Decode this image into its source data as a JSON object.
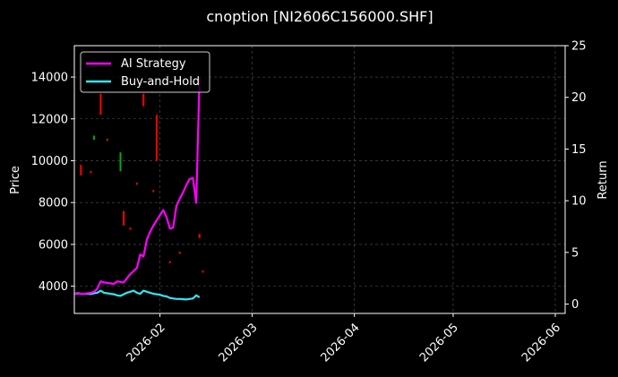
{
  "chart_data": {
    "type": "line",
    "title": "cnoption [NI2606C156000.SHF]",
    "ylabel": "Price",
    "ylabel_right": "Return",
    "x_range": [
      "2026-01-06",
      "2026-06-04"
    ],
    "ylim": [
      2700,
      15500
    ],
    "ylim_right": [
      -0.9,
      25
    ],
    "x_ticks": [
      "2026-02",
      "2026-03",
      "2026-04",
      "2026-05",
      "2026-06"
    ],
    "y_ticks": [
      4000,
      6000,
      8000,
      10000,
      12000,
      14000
    ],
    "y_ticks_right": [
      0,
      5,
      10,
      15,
      20,
      25
    ],
    "grid": true,
    "legend_position": "top-left",
    "colors": {
      "background": "#000000",
      "strategy": "#ff00ff",
      "buyhold": "#33e5f2",
      "candle_up": "#00b000",
      "candle_down": "#ff0000",
      "grid": "#555555"
    },
    "series": [
      {
        "name": "AI Strategy",
        "color": "#ff00ff",
        "axis": "right",
        "x": [
          "2026-01-06",
          "2026-01-07",
          "2026-01-08",
          "2026-01-09",
          "2026-01-10",
          "2026-01-11",
          "2026-01-12",
          "2026-01-13",
          "2026-01-14",
          "2026-01-15",
          "2026-01-16",
          "2026-01-17",
          "2026-01-18",
          "2026-01-19",
          "2026-01-20",
          "2026-01-21",
          "2026-01-22",
          "2026-01-23",
          "2026-01-24",
          "2026-01-25",
          "2026-01-26",
          "2026-01-27",
          "2026-01-28",
          "2026-01-29",
          "2026-01-30",
          "2026-01-31",
          "2026-02-01",
          "2026-02-02",
          "2026-02-03",
          "2026-02-04",
          "2026-02-05",
          "2026-02-06",
          "2026-02-07",
          "2026-02-08",
          "2026-02-09",
          "2026-02-10",
          "2026-02-11",
          "2026-02-12",
          "2026-02-13"
        ],
        "values": [
          1.0,
          1.0,
          1.0,
          1.0,
          1.05,
          1.1,
          1.2,
          1.5,
          2.2,
          2.1,
          2.05,
          2.0,
          1.95,
          2.2,
          2.15,
          2.1,
          2.5,
          2.9,
          3.2,
          3.5,
          4.8,
          4.6,
          6.2,
          7.0,
          7.6,
          8.1,
          8.6,
          9.1,
          8.4,
          7.3,
          7.4,
          9.5,
          10.2,
          10.8,
          11.5,
          12.1,
          12.2,
          9.8,
          22.0
        ]
      },
      {
        "name": "Buy-and-Hold",
        "color": "#33e5f2",
        "axis": "right",
        "x": [
          "2026-01-06",
          "2026-01-07",
          "2026-01-08",
          "2026-01-09",
          "2026-01-10",
          "2026-01-11",
          "2026-01-12",
          "2026-01-13",
          "2026-01-14",
          "2026-01-15",
          "2026-01-16",
          "2026-01-17",
          "2026-01-18",
          "2026-01-19",
          "2026-01-20",
          "2026-01-21",
          "2026-01-22",
          "2026-01-23",
          "2026-01-24",
          "2026-01-25",
          "2026-01-26",
          "2026-01-27",
          "2026-01-28",
          "2026-01-29",
          "2026-01-30",
          "2026-01-31",
          "2026-02-01",
          "2026-02-02",
          "2026-02-03",
          "2026-02-04",
          "2026-02-05",
          "2026-02-06",
          "2026-02-07",
          "2026-02-08",
          "2026-02-09",
          "2026-02-10",
          "2026-02-11",
          "2026-02-12",
          "2026-02-13"
        ],
        "values": [
          1.0,
          1.05,
          1.0,
          1.0,
          1.0,
          0.98,
          1.05,
          1.1,
          1.3,
          1.1,
          1.05,
          1.0,
          0.95,
          0.85,
          0.8,
          0.95,
          1.1,
          1.2,
          1.3,
          1.1,
          1.0,
          1.3,
          1.2,
          1.1,
          1.0,
          0.95,
          0.9,
          0.8,
          0.75,
          0.6,
          0.55,
          0.5,
          0.5,
          0.48,
          0.45,
          0.5,
          0.55,
          0.85,
          0.65
        ]
      }
    ],
    "candles": [
      {
        "x": "2026-01-08",
        "low": 9300,
        "high": 9800,
        "up": false
      },
      {
        "x": "2026-01-11",
        "low": 9400,
        "high": 9500,
        "up": false
      },
      {
        "x": "2026-01-12",
        "low": 11000,
        "high": 11200,
        "up": true
      },
      {
        "x": "2026-01-14",
        "low": 12200,
        "high": 13200,
        "up": false
      },
      {
        "x": "2026-01-16",
        "low": 10950,
        "high": 11050,
        "up": false
      },
      {
        "x": "2026-01-20",
        "low": 9500,
        "high": 10400,
        "up": true
      },
      {
        "x": "2026-01-21",
        "low": 6900,
        "high": 7600,
        "up": false
      },
      {
        "x": "2026-01-23",
        "low": 6700,
        "high": 6800,
        "up": false
      },
      {
        "x": "2026-01-25",
        "low": 8850,
        "high": 8950,
        "up": false
      },
      {
        "x": "2026-01-27",
        "low": 12600,
        "high": 13200,
        "up": false
      },
      {
        "x": "2026-01-30",
        "low": 8500,
        "high": 8600,
        "up": false
      },
      {
        "x": "2026-01-31",
        "low": 10000,
        "high": 12200,
        "up": false
      },
      {
        "x": "2026-02-04",
        "low": 5100,
        "high": 5200,
        "up": false
      },
      {
        "x": "2026-02-07",
        "low": 5550,
        "high": 5650,
        "up": false
      },
      {
        "x": "2026-02-13",
        "low": 6300,
        "high": 6500,
        "up": false
      },
      {
        "x": "2026-02-14",
        "low": 4650,
        "high": 4750,
        "up": false
      }
    ]
  }
}
